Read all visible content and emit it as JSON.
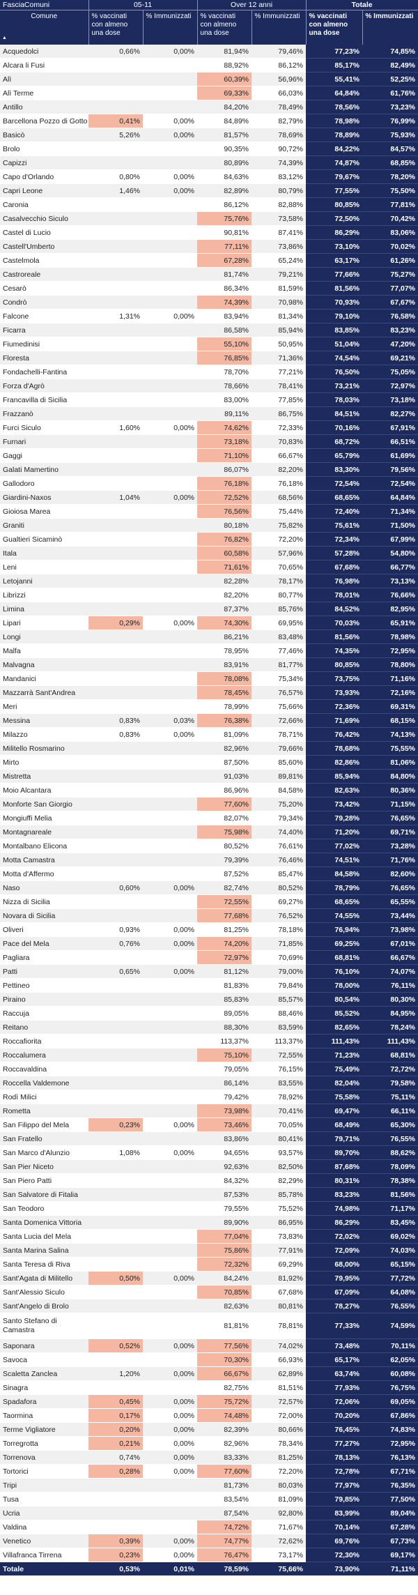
{
  "header": {
    "field_label": "FasciaComuni",
    "group_1": "05-11",
    "group_2": "Over 12 anni",
    "group_total": "Totale",
    "col_comune": "Comune",
    "col_dose": "% vaccinati con almeno una dose",
    "col_imm": "% Immunizzati"
  },
  "rows": [
    [
      "Acquedolci",
      "0,66%",
      "0,00%",
      "81,94%",
      "79,46%",
      "77,23%",
      "74,85%"
    ],
    [
      "Alcara li Fusi",
      "",
      "",
      "88,92%",
      "86,12%",
      "85,17%",
      "82,49%"
    ],
    [
      "Alì",
      "",
      "",
      "60,39%",
      "56,96%",
      "55,41%",
      "52,25%"
    ],
    [
      "Alì Terme",
      "",
      "",
      "69,33%",
      "66,03%",
      "64,84%",
      "61,76%"
    ],
    [
      "Antillo",
      "",
      "",
      "84,20%",
      "78,49%",
      "78,56%",
      "73,23%"
    ],
    [
      "Barcellona Pozzo di Gotto",
      "0,41%",
      "0,00%",
      "84,89%",
      "82,79%",
      "78,98%",
      "76,99%"
    ],
    [
      "Basicò",
      "5,26%",
      "0,00%",
      "81,57%",
      "78,69%",
      "78,89%",
      "75,93%"
    ],
    [
      "Brolo",
      "",
      "",
      "90,35%",
      "90,72%",
      "84,22%",
      "84,57%"
    ],
    [
      "Capizzi",
      "",
      "",
      "80,89%",
      "74,39%",
      "74,87%",
      "68,85%"
    ],
    [
      "Capo d'Orlando",
      "0,80%",
      "0,00%",
      "84,63%",
      "83,12%",
      "79,67%",
      "78,20%"
    ],
    [
      "Capri Leone",
      "1,46%",
      "0,00%",
      "82,89%",
      "80,79%",
      "77,55%",
      "75,50%"
    ],
    [
      "Caronia",
      "",
      "",
      "86,12%",
      "82,88%",
      "80,85%",
      "77,81%"
    ],
    [
      "Casalvecchio Siculo",
      "",
      "",
      "75,76%",
      "73,58%",
      "72,50%",
      "70,42%"
    ],
    [
      "Castel di Lucio",
      "",
      "",
      "90,81%",
      "87,41%",
      "86,29%",
      "83,06%"
    ],
    [
      "Castell'Umberto",
      "",
      "",
      "77,11%",
      "73,86%",
      "73,10%",
      "70,02%"
    ],
    [
      "Castelmola",
      "",
      "",
      "67,28%",
      "65,24%",
      "63,17%",
      "61,26%"
    ],
    [
      "Castroreale",
      "",
      "",
      "81,74%",
      "79,21%",
      "77,66%",
      "75,27%"
    ],
    [
      "Cesarò",
      "",
      "",
      "86,34%",
      "81,59%",
      "81,56%",
      "77,07%"
    ],
    [
      "Condrò",
      "",
      "",
      "74,39%",
      "70,98%",
      "70,93%",
      "67,67%"
    ],
    [
      "Falcone",
      "1,31%",
      "0,00%",
      "83,94%",
      "81,34%",
      "79,10%",
      "76,58%"
    ],
    [
      "Ficarra",
      "",
      "",
      "86,58%",
      "85,94%",
      "83,85%",
      "83,23%"
    ],
    [
      "Fiumedinisi",
      "",
      "",
      "55,10%",
      "50,95%",
      "51,04%",
      "47,20%"
    ],
    [
      "Floresta",
      "",
      "",
      "76,85%",
      "71,36%",
      "74,54%",
      "69,21%"
    ],
    [
      "Fondachelli-Fantina",
      "",
      "",
      "78,70%",
      "77,21%",
      "76,50%",
      "75,05%"
    ],
    [
      "Forza d'Agrò",
      "",
      "",
      "78,66%",
      "78,41%",
      "73,21%",
      "72,97%"
    ],
    [
      "Francavilla di Sicilia",
      "",
      "",
      "83,00%",
      "77,85%",
      "78,03%",
      "73,18%"
    ],
    [
      "Frazzanò",
      "",
      "",
      "89,11%",
      "86,75%",
      "84,51%",
      "82,27%"
    ],
    [
      "Furci Siculo",
      "1,60%",
      "0,00%",
      "74,62%",
      "72,33%",
      "70,16%",
      "67,91%"
    ],
    [
      "Furnari",
      "",
      "",
      "73,18%",
      "70,83%",
      "68,72%",
      "66,51%"
    ],
    [
      "Gaggi",
      "",
      "",
      "71,10%",
      "66,67%",
      "65,79%",
      "61,69%"
    ],
    [
      "Galati Mamertino",
      "",
      "",
      "86,07%",
      "82,20%",
      "83,30%",
      "79,56%"
    ],
    [
      "Gallodoro",
      "",
      "",
      "76,18%",
      "76,18%",
      "72,54%",
      "72,54%"
    ],
    [
      "Giardini-Naxos",
      "1,04%",
      "0,00%",
      "72,52%",
      "68,56%",
      "68,65%",
      "64,84%"
    ],
    [
      "Gioiosa Marea",
      "",
      "",
      "76,56%",
      "75,44%",
      "72,40%",
      "71,34%"
    ],
    [
      "Graniti",
      "",
      "",
      "80,18%",
      "75,82%",
      "75,61%",
      "71,50%"
    ],
    [
      "Gualtieri Sicaminò",
      "",
      "",
      "76,82%",
      "72,20%",
      "72,34%",
      "67,99%"
    ],
    [
      "Itala",
      "",
      "",
      "60,58%",
      "57,96%",
      "57,28%",
      "54,80%"
    ],
    [
      "Leni",
      "",
      "",
      "71,61%",
      "70,65%",
      "67,68%",
      "66,77%"
    ],
    [
      "Letojanni",
      "",
      "",
      "82,28%",
      "78,17%",
      "76,98%",
      "73,13%"
    ],
    [
      "Librizzi",
      "",
      "",
      "82,20%",
      "80,77%",
      "78,01%",
      "76,66%"
    ],
    [
      "Limina",
      "",
      "",
      "87,37%",
      "85,76%",
      "84,52%",
      "82,95%"
    ],
    [
      "Lipari",
      "0,29%",
      "0,00%",
      "74,30%",
      "69,95%",
      "70,03%",
      "65,91%"
    ],
    [
      "Longi",
      "",
      "",
      "86,21%",
      "83,48%",
      "81,56%",
      "78,98%"
    ],
    [
      "Malfa",
      "",
      "",
      "78,95%",
      "77,46%",
      "74,35%",
      "72,95%"
    ],
    [
      "Malvagna",
      "",
      "",
      "83,91%",
      "81,77%",
      "80,85%",
      "78,80%"
    ],
    [
      "Mandanici",
      "",
      "",
      "78,08%",
      "75,34%",
      "73,75%",
      "71,16%"
    ],
    [
      "Mazzarrà Sant'Andrea",
      "",
      "",
      "78,45%",
      "76,57%",
      "73,93%",
      "72,16%"
    ],
    [
      "Meri",
      "",
      "",
      "78,99%",
      "75,66%",
      "72,36%",
      "69,31%"
    ],
    [
      "Messina",
      "0,83%",
      "0,03%",
      "76,38%",
      "72,66%",
      "71,69%",
      "68,15%"
    ],
    [
      "Milazzo",
      "0,83%",
      "0,00%",
      "81,09%",
      "78,71%",
      "76,42%",
      "74,13%"
    ],
    [
      "Militello Rosmarino",
      "",
      "",
      "82,96%",
      "79,66%",
      "78,68%",
      "75,55%"
    ],
    [
      "Mirto",
      "",
      "",
      "87,50%",
      "85,60%",
      "82,86%",
      "81,06%"
    ],
    [
      "Mistretta",
      "",
      "",
      "91,03%",
      "89,81%",
      "85,94%",
      "84,80%"
    ],
    [
      "Moio Alcantara",
      "",
      "",
      "86,96%",
      "84,58%",
      "82,63%",
      "80,36%"
    ],
    [
      "Monforte San Giorgio",
      "",
      "",
      "77,60%",
      "75,20%",
      "73,42%",
      "71,15%"
    ],
    [
      "Mongiuffi Melia",
      "",
      "",
      "82,07%",
      "79,34%",
      "79,28%",
      "76,65%"
    ],
    [
      "Montagnareale",
      "",
      "",
      "75,98%",
      "74,40%",
      "71,20%",
      "69,71%"
    ],
    [
      "Montalbano Elicona",
      "",
      "",
      "80,52%",
      "76,61%",
      "77,02%",
      "73,28%"
    ],
    [
      "Motta Camastra",
      "",
      "",
      "79,39%",
      "76,46%",
      "74,51%",
      "71,76%"
    ],
    [
      "Motta d'Affermo",
      "",
      "",
      "87,52%",
      "85,47%",
      "84,58%",
      "82,60%"
    ],
    [
      "Naso",
      "0,60%",
      "0,00%",
      "82,74%",
      "80,52%",
      "78,79%",
      "76,65%"
    ],
    [
      "Nizza di Sicilia",
      "",
      "",
      "72,55%",
      "69,27%",
      "68,65%",
      "65,55%"
    ],
    [
      "Novara di Sicilia",
      "",
      "",
      "77,68%",
      "76,52%",
      "74,55%",
      "73,44%"
    ],
    [
      "Oliveri",
      "0,93%",
      "0,00%",
      "81,25%",
      "78,18%",
      "76,94%",
      "73,98%"
    ],
    [
      "Pace del Mela",
      "0,76%",
      "0,00%",
      "74,20%",
      "71,85%",
      "69,25%",
      "67,01%"
    ],
    [
      "Pagliara",
      "",
      "",
      "72,97%",
      "70,69%",
      "68,81%",
      "66,67%"
    ],
    [
      "Patti",
      "0,65%",
      "0,00%",
      "81,12%",
      "79,00%",
      "76,10%",
      "74,07%"
    ],
    [
      "Pettineo",
      "",
      "",
      "81,83%",
      "79,84%",
      "78,00%",
      "76,11%"
    ],
    [
      "Piraino",
      "",
      "",
      "85,83%",
      "85,57%",
      "80,54%",
      "80,30%"
    ],
    [
      "Raccuja",
      "",
      "",
      "89,05%",
      "88,46%",
      "85,52%",
      "84,95%"
    ],
    [
      "Reitano",
      "",
      "",
      "88,30%",
      "83,59%",
      "82,65%",
      "78,24%"
    ],
    [
      "Roccafiorita",
      "",
      "",
      "113,37%",
      "113,37%",
      "111,43%",
      "111,43%"
    ],
    [
      "Roccalumera",
      "",
      "",
      "75,10%",
      "72,55%",
      "71,23%",
      "68,81%"
    ],
    [
      "Roccavaldina",
      "",
      "",
      "79,05%",
      "76,15%",
      "75,49%",
      "72,72%"
    ],
    [
      "Roccella Valdemone",
      "",
      "",
      "86,14%",
      "83,55%",
      "82,04%",
      "79,58%"
    ],
    [
      "Rodì Milici",
      "",
      "",
      "79,42%",
      "78,92%",
      "75,58%",
      "75,11%"
    ],
    [
      "Rometta",
      "",
      "",
      "73,98%",
      "70,41%",
      "69,47%",
      "66,11%"
    ],
    [
      "San Filippo del Mela",
      "0,23%",
      "0,00%",
      "73,46%",
      "70,05%",
      "68,49%",
      "65,30%"
    ],
    [
      "San Fratello",
      "",
      "",
      "83,86%",
      "80,41%",
      "79,71%",
      "76,55%"
    ],
    [
      "San Marco d'Alunzio",
      "1,08%",
      "0,00%",
      "94,65%",
      "93,57%",
      "89,70%",
      "88,62%"
    ],
    [
      "San Pier Niceto",
      "",
      "",
      "92,63%",
      "82,50%",
      "87,68%",
      "78,09%"
    ],
    [
      "San Piero Patti",
      "",
      "",
      "84,32%",
      "82,29%",
      "80,31%",
      "78,38%"
    ],
    [
      "San Salvatore di Fitalia",
      "",
      "",
      "87,53%",
      "85,78%",
      "83,23%",
      "81,56%"
    ],
    [
      "San Teodoro",
      "",
      "",
      "79,55%",
      "75,52%",
      "74,98%",
      "71,17%"
    ],
    [
      "Santa Domenica Vittoria",
      "",
      "",
      "89,90%",
      "86,95%",
      "86,29%",
      "83,45%"
    ],
    [
      "Santa Lucia del Mela",
      "",
      "",
      "77,04%",
      "73,83%",
      "72,02%",
      "69,02%"
    ],
    [
      "Santa Marina Salina",
      "",
      "",
      "75,86%",
      "77,91%",
      "72,09%",
      "74,03%"
    ],
    [
      "Santa Teresa di Riva",
      "",
      "",
      "72,32%",
      "69,29%",
      "68,00%",
      "65,15%"
    ],
    [
      "Sant'Agata di Militello",
      "0,50%",
      "0,00%",
      "84,24%",
      "81,92%",
      "79,95%",
      "77,72%"
    ],
    [
      "Sant'Alessio Siculo",
      "",
      "",
      "70,85%",
      "67,68%",
      "67,09%",
      "64,08%"
    ],
    [
      "Sant'Angelo di Brolo",
      "",
      "",
      "82,63%",
      "80,81%",
      "78,27%",
      "76,55%"
    ],
    [
      "Santo Stefano di Camastra",
      "",
      "",
      "81,81%",
      "78,81%",
      "77,33%",
      "74,59%"
    ],
    [
      "Saponara",
      "0,52%",
      "0,00%",
      "77,56%",
      "74,02%",
      "73,48%",
      "70,11%"
    ],
    [
      "Savoca",
      "",
      "",
      "70,30%",
      "66,93%",
      "65,17%",
      "62,05%"
    ],
    [
      "Scaletta Zanclea",
      "1,20%",
      "0,00%",
      "66,67%",
      "62,89%",
      "63,74%",
      "60,08%"
    ],
    [
      "Sinagra",
      "",
      "",
      "82,75%",
      "81,51%",
      "77,93%",
      "76,75%"
    ],
    [
      "Spadafora",
      "0,45%",
      "0,00%",
      "75,72%",
      "72,57%",
      "72,06%",
      "69,05%"
    ],
    [
      "Taormina",
      "0,17%",
      "0,00%",
      "74,48%",
      "72,00%",
      "70,20%",
      "67,86%"
    ],
    [
      "Terme Vigliatore",
      "0,20%",
      "0,00%",
      "82,39%",
      "80,66%",
      "76,45%",
      "74,83%"
    ],
    [
      "Torregrotta",
      "0,21%",
      "0,00%",
      "82,96%",
      "78,34%",
      "77,27%",
      "72,95%"
    ],
    [
      "Torrenova",
      "0,74%",
      "0,00%",
      "83,33%",
      "81,25%",
      "78,13%",
      "76,13%"
    ],
    [
      "Tortorici",
      "0,28%",
      "0,00%",
      "77,60%",
      "72,20%",
      "72,78%",
      "67,71%"
    ],
    [
      "Tripi",
      "",
      "",
      "81,73%",
      "80,03%",
      "77,97%",
      "76,35%"
    ],
    [
      "Tusa",
      "",
      "",
      "83,54%",
      "81,09%",
      "79,85%",
      "77,50%"
    ],
    [
      "Ucria",
      "",
      "",
      "87,54%",
      "92,80%",
      "83,99%",
      "89,04%"
    ],
    [
      "Valdina",
      "",
      "",
      "74,72%",
      "71,67%",
      "70,14%",
      "67,28%"
    ],
    [
      "Venetico",
      "0,39%",
      "0,00%",
      "74,77%",
      "72,62%",
      "69,76%",
      "67,73%"
    ],
    [
      "Villafranca Tirrena",
      "0,23%",
      "0,00%",
      "76,47%",
      "73,17%",
      "72,30%",
      "69,17%"
    ]
  ],
  "highlight_dose_0511": [
    "Barcellona Pozzo di Gotto",
    "Lipari",
    "San Filippo del Mela",
    "Sant'Agata di Militello",
    "Saponara",
    "Spadafora",
    "Taormina",
    "Terme Vigliatore",
    "Torregrotta",
    "Tortorici",
    "Venetico",
    "Villafranca Tirrena"
  ],
  "highlight_dose_over12": [
    "Alì",
    "Alì Terme",
    "Casalvecchio Siculo",
    "Castell'Umberto",
    "Castelmola",
    "Condrò",
    "Fiumedinisi",
    "Floresta",
    "Furci Siculo",
    "Furnari",
    "Gaggi",
    "Gallodoro",
    "Giardini-Naxos",
    "Gioiosa Marea",
    "Gualtieri Sicaminò",
    "Itala",
    "Leni",
    "Lipari",
    "Mandanici",
    "Mazzarrà Sant'Andrea",
    "Messina",
    "Monforte San Giorgio",
    "Montagnareale",
    "Nizza di Sicilia",
    "Novara di Sicilia",
    "Pace del Mela",
    "Pagliara",
    "Roccalumera",
    "Rometta",
    "San Filippo del Mela",
    "Santa Lucia del Mela",
    "Santa Marina Salina",
    "Santa Teresa di Riva",
    "Sant'Alessio Siculo",
    "Saponara",
    "Savoca",
    "Scaletta Zanclea",
    "Spadafora",
    "Taormina",
    "Tortorici",
    "Valdina",
    "Venetico",
    "Villafranca Tirrena"
  ],
  "total": [
    "Totale",
    "0,53%",
    "0,01%",
    "78,59%",
    "75,66%",
    "73,90%",
    "71,11%"
  ],
  "colors": {
    "header_bg": "#1c2a5e",
    "highlight": "#f5b7a1",
    "stripe": "#f0f0f0"
  }
}
